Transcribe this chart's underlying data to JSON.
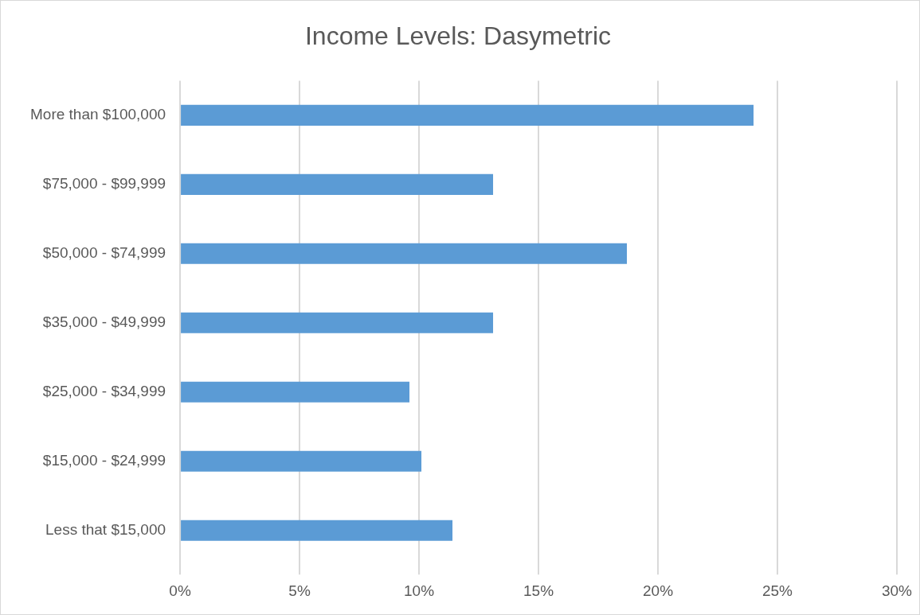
{
  "chart_data": {
    "type": "bar",
    "orientation": "horizontal",
    "title": "Income Levels: Dasymetric",
    "categories": [
      "More than $100,000",
      "$75,000 - $99,999",
      "$50,000 - $74,999",
      "$35,000 - $49,999",
      "$25,000 - $34,999",
      "$15,000 - $24,999",
      "Less that $15,000"
    ],
    "values": [
      24.0,
      13.1,
      18.7,
      13.1,
      9.6,
      10.1,
      11.4
    ],
    "color": "#5b9bd5",
    "xlim": [
      0,
      30
    ],
    "xticks": [
      {
        "value": 0,
        "label": "0%"
      },
      {
        "value": 5,
        "label": "5%"
      },
      {
        "value": 10,
        "label": "10%"
      },
      {
        "value": 15,
        "label": "15%"
      },
      {
        "value": 20,
        "label": "20%"
      },
      {
        "value": 25,
        "label": "25%"
      },
      {
        "value": 30,
        "label": "30%"
      }
    ],
    "grid": "x",
    "legend": false
  }
}
